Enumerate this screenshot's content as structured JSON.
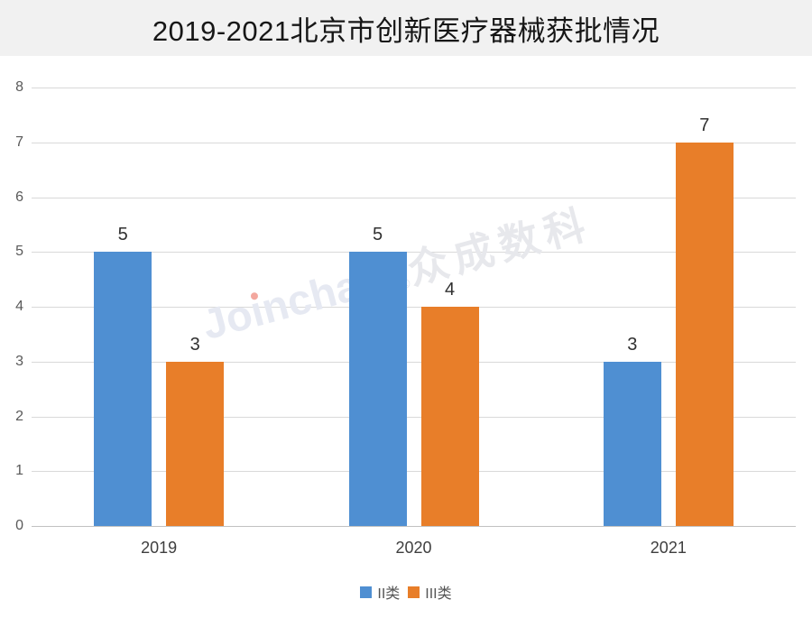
{
  "banner": {
    "title": "2019-2021北京市创新医疗器械获批情况"
  },
  "chart_data": {
    "type": "bar",
    "title": "2019-2021北京市创新医疗器械获批情况",
    "categories": [
      "2019",
      "2020",
      "2021"
    ],
    "series": [
      {
        "name": "II类",
        "color": "#4f8fd2",
        "values": [
          5,
          5,
          3
        ]
      },
      {
        "name": "III类",
        "color": "#e87e29",
        "values": [
          3,
          4,
          7
        ]
      }
    ],
    "xlabel": "",
    "ylabel": "",
    "ylim": [
      0,
      8
    ],
    "yticks": [
      0,
      1,
      2,
      3,
      4,
      5,
      6,
      7,
      8
    ],
    "grid": true,
    "data_labels_shown": true,
    "legend_position": "bottom"
  },
  "legend": {
    "items": [
      {
        "label": "II类",
        "color": "#4f8fd2"
      },
      {
        "label": "III类",
        "color": "#e87e29"
      }
    ]
  },
  "watermark": {
    "latin_prefix": "Jo",
    "latin_i": "ı",
    "latin_suffix": "nchain",
    "registered_mark": "®",
    "cjk": "众成数科"
  },
  "colors": {
    "banner_background": "#f1f1f1",
    "gridline": "#d9d9d9",
    "axis_line": "#c2c2c2",
    "tick_text": "#595959",
    "value_label_text": "#303030",
    "watermark_text": "#e6e9f2",
    "watermark_dot": "#f3a79e"
  }
}
